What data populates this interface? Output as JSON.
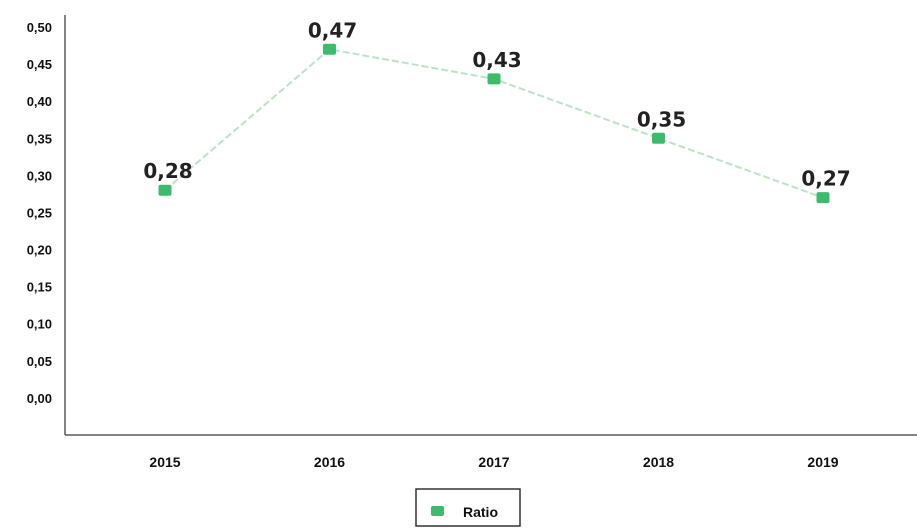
{
  "chart_data": {
    "type": "line",
    "categories": [
      "2015",
      "2016",
      "2017",
      "2018",
      "2019"
    ],
    "series": [
      {
        "name": "Ratio",
        "values": [
          0.28,
          0.47,
          0.43,
          0.35,
          0.27
        ]
      }
    ],
    "data_labels": [
      "0,28",
      "0,47",
      "0,43",
      "0,35",
      "0,27"
    ],
    "y_ticks": [
      {
        "value": 0.0,
        "label": "0,00"
      },
      {
        "value": 0.05,
        "label": "0,05"
      },
      {
        "value": 0.1,
        "label": "0,10"
      },
      {
        "value": 0.15,
        "label": "0,15"
      },
      {
        "value": 0.2,
        "label": "0,20"
      },
      {
        "value": 0.25,
        "label": "0,25"
      },
      {
        "value": 0.3,
        "label": "0,30"
      },
      {
        "value": 0.35,
        "label": "0,35"
      },
      {
        "value": 0.4,
        "label": "0,40"
      },
      {
        "value": 0.45,
        "label": "0,45"
      },
      {
        "value": 0.5,
        "label": "0,50"
      }
    ],
    "ylim": [
      -0.05,
      0.5
    ],
    "grid": false,
    "legend": "bottom-center",
    "colors": {
      "marker": "#3dbb6c",
      "line": "#a6dab1",
      "axis": "#5a5a5a"
    }
  }
}
